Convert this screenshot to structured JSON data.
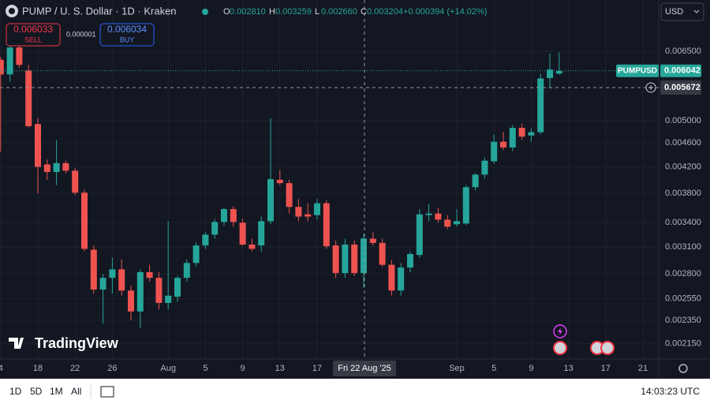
{
  "header": {
    "symbol": "PUMP / U. S. Dollar · 1D · Kraken",
    "ohlc": [
      {
        "key": "O",
        "value": "0.002810"
      },
      {
        "key": "H",
        "value": "0.003259"
      },
      {
        "key": "L",
        "value": "0.002660"
      },
      {
        "key": "C",
        "value": "0.003204"
      }
    ],
    "change": "+0.000394 (+14.02%)",
    "sell": {
      "price": "0.006033",
      "label": "SELL"
    },
    "spread": "0.000001",
    "buy": {
      "price": "0.006034",
      "label": "BUY"
    },
    "currency": "USD",
    "logo": "TradingView"
  },
  "toolbar": {
    "ranges": [
      "1D",
      "5D",
      "1M",
      "All"
    ],
    "clock": "14:03:23 UTC"
  },
  "chart_data": {
    "type": "candlestick",
    "log_scale": true,
    "grid": true,
    "up_color": "#26a69a",
    "down_color": "#ef5350",
    "categories": [
      "4",
      null,
      null,
      null,
      "18",
      null,
      null,
      null,
      "22",
      null,
      null,
      null,
      "26",
      null,
      null,
      null,
      null,
      null,
      "Aug",
      null,
      null,
      null,
      "5",
      null,
      null,
      null,
      "9",
      null,
      null,
      null,
      "13",
      null,
      null,
      null,
      "17",
      null,
      null,
      null,
      null,
      null,
      null,
      null,
      null,
      null,
      null,
      null,
      null,
      null,
      null,
      "Sep",
      null,
      null,
      null,
      "5",
      null,
      null,
      null,
      "9",
      null,
      null,
      null,
      "13",
      null,
      null,
      null,
      "17",
      null,
      null,
      null,
      "21"
    ],
    "open": [
      0.0063,
      0.00596,
      0.0066,
      0.00605,
      0.00494,
      0.00424,
      0.00412,
      0.00426,
      0.00414,
      0.00381,
      0.00307,
      0.00264,
      0.00276,
      0.00285,
      0.00263,
      0.00243,
      0.00282,
      0.00276,
      0.00251,
      0.00257,
      0.00276,
      0.00292,
      0.00312,
      0.00325,
      0.00341,
      0.00358,
      0.0034,
      0.00313,
      0.00312,
      0.00342,
      0.004,
      0.00395,
      0.00361,
      0.00351,
      0.0035,
      0.00366,
      0.00312,
      0.00281,
      0.00313,
      0.00281,
      0.0032,
      0.00315,
      0.0029,
      0.00263,
      0.00287,
      0.00301,
      0.0035,
      0.00352,
      0.00344,
      0.00338,
      0.00339,
      0.00389,
      0.00408,
      0.00429,
      0.00462,
      0.00452,
      0.00487,
      0.00473,
      0.00479,
      0.00588,
      0.00598,
      null,
      null,
      null,
      null,
      null,
      null,
      null,
      null,
      null
    ],
    "high": [
      0.00637,
      0.00665,
      0.00665,
      0.00618,
      0.00505,
      0.00432,
      0.00465,
      0.0043,
      0.00418,
      0.00385,
      0.00312,
      0.0028,
      0.00298,
      0.00296,
      0.00268,
      0.00285,
      0.0029,
      0.00282,
      0.00342,
      0.00278,
      0.00296,
      0.00316,
      0.00328,
      0.00345,
      0.0036,
      0.00362,
      0.00345,
      0.0032,
      0.00348,
      0.00505,
      0.00415,
      0.004,
      0.00372,
      0.00366,
      0.00372,
      0.0037,
      0.00318,
      0.0032,
      0.00318,
      0.003259,
      0.00328,
      0.0032,
      0.00295,
      0.00292,
      0.00305,
      0.00358,
      0.00365,
      0.0036,
      0.0035,
      0.00358,
      0.00392,
      0.0041,
      0.00435,
      0.00475,
      0.0048,
      0.00492,
      0.00495,
      0.00486,
      0.00598,
      0.00645,
      0.00648,
      null,
      null,
      null,
      null,
      null,
      null,
      null,
      null,
      null
    ],
    "low": [
      0.00445,
      0.0058,
      0.00612,
      0.00488,
      0.0038,
      0.004,
      0.00392,
      0.0041,
      0.00378,
      0.00305,
      0.0026,
      0.00232,
      0.0026,
      0.00258,
      0.00235,
      0.00228,
      0.00272,
      0.00245,
      0.00245,
      0.00252,
      0.00272,
      0.00288,
      0.00308,
      0.0032,
      0.00336,
      0.00335,
      0.00312,
      0.00305,
      0.00305,
      0.00338,
      0.00392,
      0.00352,
      0.00342,
      0.00342,
      0.00344,
      0.00308,
      0.00276,
      0.00276,
      0.00278,
      0.00266,
      0.00312,
      0.00288,
      0.00258,
      0.00258,
      0.00282,
      0.00298,
      0.00342,
      0.0034,
      0.00332,
      0.00335,
      0.00337,
      0.00384,
      0.00402,
      0.00425,
      0.00448,
      0.00446,
      0.00465,
      0.00462,
      0.00475,
      0.00565,
      0.00595,
      null,
      null,
      null,
      null,
      null,
      null,
      null,
      null,
      null
    ],
    "close": [
      0.00596,
      0.0066,
      0.00618,
      0.0049,
      0.0042,
      0.00412,
      0.00426,
      0.00414,
      0.00381,
      0.00308,
      0.00264,
      0.00276,
      0.00285,
      0.00263,
      0.00243,
      0.00282,
      0.00276,
      0.00251,
      0.00258,
      0.00276,
      0.00292,
      0.00312,
      0.00325,
      0.00341,
      0.00358,
      0.00341,
      0.00313,
      0.00308,
      0.00342,
      0.00401,
      0.00395,
      0.00361,
      0.00348,
      0.00348,
      0.00366,
      0.00311,
      0.00281,
      0.00313,
      0.00281,
      0.003204,
      0.00315,
      0.0029,
      0.00263,
      0.00287,
      0.00302,
      0.00351,
      0.00352,
      0.00344,
      0.00335,
      0.00342,
      0.00389,
      0.00408,
      0.0043,
      0.00462,
      0.00452,
      0.00487,
      0.00471,
      0.00479,
      0.00587,
      0.00607,
      0.006042,
      null,
      null,
      null,
      null,
      null,
      null,
      null,
      null,
      null
    ],
    "ylim": [
      0.00203,
      0.0079
    ],
    "yticks": [
      {
        "value": 0.0065,
        "label": "0.006500"
      },
      {
        "value": 0.005,
        "label": "0.005000"
      },
      {
        "value": 0.0046,
        "label": "0.004600"
      },
      {
        "value": 0.0042,
        "label": "0.004200"
      },
      {
        "value": 0.0038,
        "label": "0.003800"
      },
      {
        "value": 0.0034,
        "label": "0.003400"
      },
      {
        "value": 0.0031,
        "label": "0.003100"
      },
      {
        "value": 0.0028,
        "label": "0.002800"
      },
      {
        "value": 0.00255,
        "label": "0.002550"
      },
      {
        "value": 0.00235,
        "label": "0.002350"
      },
      {
        "value": 0.00215,
        "label": "0.002150"
      }
    ],
    "last_price": {
      "label": "PUMPUSD",
      "value": 0.006042
    },
    "crosshair": {
      "x_label": "Fri 22 Aug '25",
      "y_value": 0.005672
    }
  }
}
